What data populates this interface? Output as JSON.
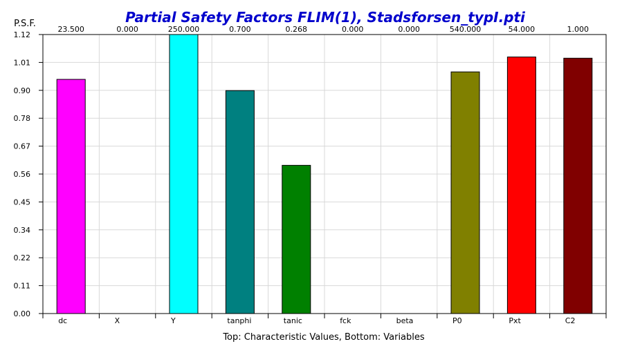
{
  "chart_data": {
    "type": "bar",
    "title": "Partial Safety Factors FLIM(1), Stadsforsen_typI.pti",
    "ylabel": "P.S.F.",
    "xlabel": "Top: Characteristic Values, Bottom: Variables",
    "ylim": [
      0,
      1.12
    ],
    "yticks": [
      "1.12",
      "1.01",
      "0.90",
      "0.78",
      "0.67",
      "0.56",
      "0.45",
      "0.34",
      "0.22",
      "0.11",
      "0.00"
    ],
    "categories": [
      "dc",
      "X",
      "Y",
      "tanphi",
      "tanic",
      "fck",
      "beta",
      "P0",
      "Pxt",
      "C2"
    ],
    "top_labels": [
      "23.500",
      "0.000",
      "250.000",
      "0.700",
      "0.268",
      "0.000",
      "0.000",
      "540.000",
      "54.000",
      "1.000"
    ],
    "values": [
      0.94,
      0,
      1.12,
      0.895,
      0.595,
      0,
      0,
      0.97,
      1.03,
      1.025
    ],
    "colors": [
      "#ff00ff",
      "#ffffff",
      "#00ffff",
      "#008080",
      "#008000",
      "#ffffff",
      "#ffffff",
      "#808000",
      "#ff0000",
      "#800000"
    ],
    "title_color": "#0000cc"
  }
}
